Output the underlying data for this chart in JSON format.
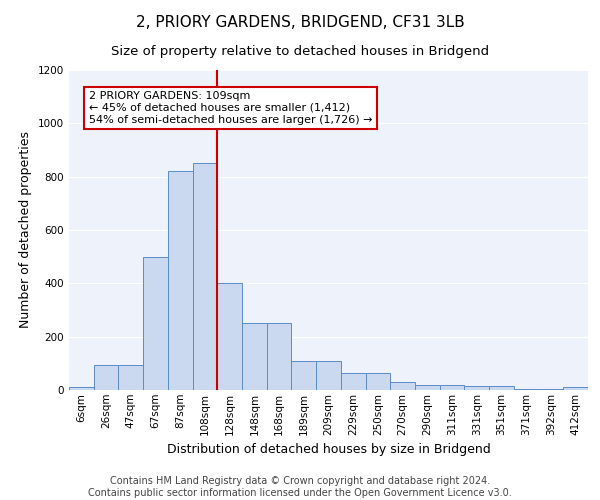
{
  "title": "2, PRIORY GARDENS, BRIDGEND, CF31 3LB",
  "subtitle": "Size of property relative to detached houses in Bridgend",
  "xlabel": "Distribution of detached houses by size in Bridgend",
  "ylabel": "Number of detached properties",
  "bin_labels": [
    "6sqm",
    "26sqm",
    "47sqm",
    "67sqm",
    "87sqm",
    "108sqm",
    "128sqm",
    "148sqm",
    "168sqm",
    "189sqm",
    "209sqm",
    "229sqm",
    "250sqm",
    "270sqm",
    "290sqm",
    "311sqm",
    "331sqm",
    "351sqm",
    "371sqm",
    "392sqm",
    "412sqm"
  ],
  "bar_heights": [
    10,
    95,
    95,
    500,
    820,
    850,
    400,
    250,
    250,
    110,
    110,
    65,
    65,
    30,
    20,
    20,
    15,
    15,
    5,
    5,
    10
  ],
  "bar_color": "#cad9ef",
  "bar_edge_color": "#5b8cc8",
  "background_color": "#eef2fb",
  "grid_color": "#ffffff",
  "vline_x_index": 5.5,
  "annotation_text": "2 PRIORY GARDENS: 109sqm\n← 45% of detached houses are smaller (1,412)\n54% of semi-detached houses are larger (1,726) →",
  "annotation_box_color": "#ffffff",
  "annotation_box_edge": "#cc0000",
  "vline_color": "#cc0000",
  "ylim": [
    0,
    1200
  ],
  "yticks": [
    0,
    200,
    400,
    600,
    800,
    1000,
    1200
  ],
  "footer_line1": "Contains HM Land Registry data © Crown copyright and database right 2024.",
  "footer_line2": "Contains public sector information licensed under the Open Government Licence v3.0.",
  "title_fontsize": 11,
  "subtitle_fontsize": 9.5,
  "xlabel_fontsize": 9,
  "ylabel_fontsize": 9,
  "tick_fontsize": 7.5,
  "footer_fontsize": 7,
  "annot_fontsize": 8
}
